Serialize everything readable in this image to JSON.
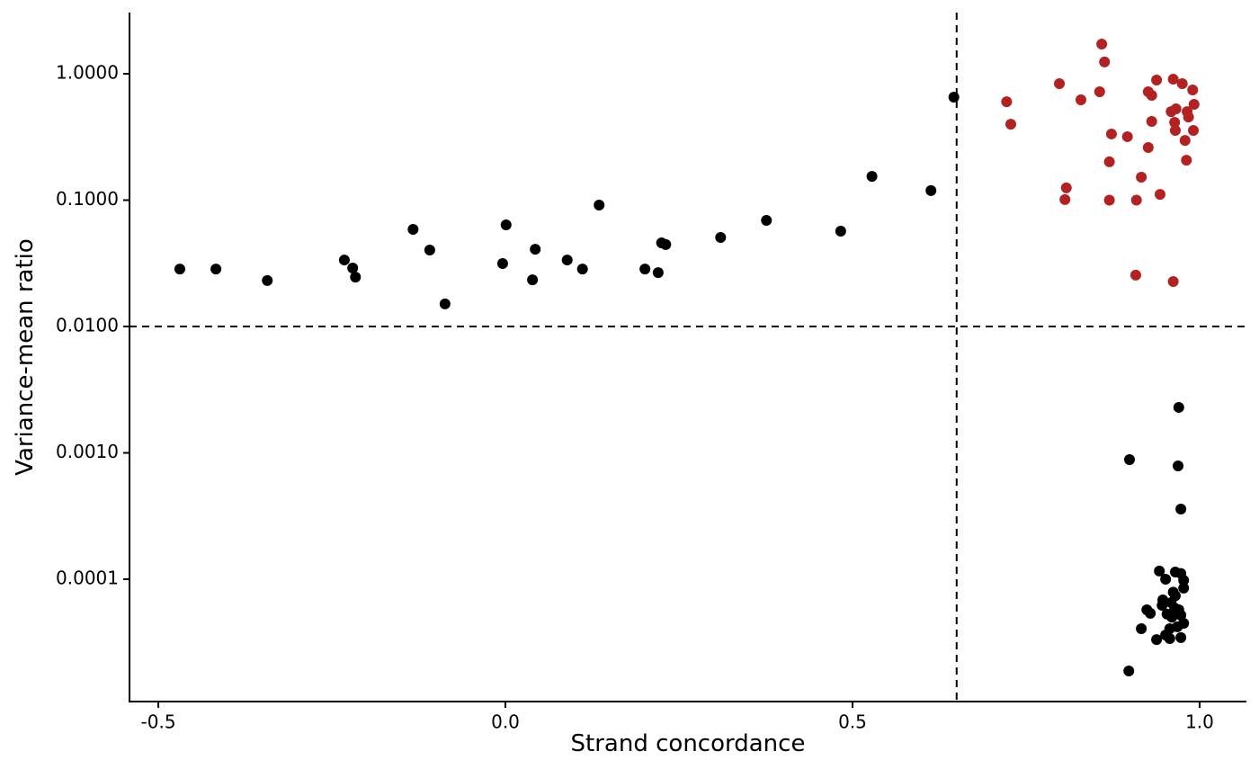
{
  "chart_data": {
    "type": "scatter",
    "xlabel": "Strand concordance",
    "ylabel": "Variance-mean ratio",
    "xlim": [
      -0.5415,
      1.0674
    ],
    "ylim": [
      1.076e-05,
      3.05
    ],
    "ylog": true,
    "xticks": [
      -0.5,
      {
        "value": 0,
        "label": "0.0"
      },
      0.5,
      {
        "value": 1,
        "label": "1.0"
      }
    ],
    "yticks": [
      {
        "value": 1,
        "label": "1.0000"
      },
      {
        "value": 0.1,
        "label": "0.1000"
      },
      {
        "value": 0.01,
        "label": "0.0100"
      },
      {
        "value": 0.001,
        "label": "0.0010"
      },
      {
        "value": 0.0001,
        "label": "0.0001"
      }
    ],
    "reference_lines": {
      "x": 0.65,
      "y": 0.01
    },
    "series": [
      {
        "color": "#000000",
        "x": [
          -0.469,
          -0.417,
          -0.343,
          -0.232,
          -0.22,
          -0.216,
          -0.133,
          -0.109,
          -0.087,
          -0.004,
          0.001,
          0.039,
          0.043,
          0.089,
          0.111,
          0.135,
          0.201,
          0.22,
          0.225,
          0.231,
          0.31,
          0.376,
          0.483,
          0.528,
          0.613,
          0.646,
          0.97,
          0.899,
          0.969,
          0.973,
          0.898,
          0.942,
          0.965,
          0.973,
          0.951,
          0.977,
          0.977,
          0.962,
          0.965,
          0.947,
          0.959,
          0.946,
          0.964,
          0.924,
          0.97,
          0.929,
          0.953,
          0.973,
          0.96,
          0.977,
          0.968,
          0.916,
          0.957,
          0.951,
          0.938,
          0.957,
          0.973
        ],
        "values": [
          0.0285,
          0.0285,
          0.0231,
          0.0336,
          0.029,
          0.0246,
          0.0587,
          0.0403,
          0.0151,
          0.0315,
          0.0637,
          0.0234,
          0.0409,
          0.0336,
          0.0285,
          0.0914,
          0.0285,
          0.0267,
          0.0459,
          0.0445,
          0.0507,
          0.0692,
          0.0568,
          0.154,
          0.119,
          0.653,
          0.00229,
          0.000885,
          0.000788,
          0.000359,
          1.88e-05,
          0.000116,
          0.000114,
          0.000111,
          0.0001,
          9.8e-05,
          8.5e-05,
          7.9e-05,
          7.4e-05,
          6.86e-05,
          6.53e-05,
          6.22e-05,
          5.92e-05,
          5.73e-05,
          5.73e-05,
          5.37e-05,
          5.3e-05,
          5.19e-05,
          5e-05,
          4.48e-05,
          4.2e-05,
          4.06e-05,
          4.06e-05,
          3.62e-05,
          3.33e-05,
          3.39e-05,
          3.45e-05
        ]
      },
      {
        "color": "#b22222",
        "x": [
          0.859,
          0.863,
          0.722,
          0.728,
          0.798,
          0.829,
          0.856,
          0.808,
          0.806,
          0.873,
          0.87,
          0.87,
          0.896,
          0.909,
          0.916,
          0.908,
          0.926,
          0.931,
          0.926,
          0.931,
          0.938,
          0.943,
          0.962,
          0.959,
          0.966,
          0.964,
          0.965,
          0.962,
          0.975,
          0.99,
          0.992,
          0.982,
          0.984,
          0.991,
          0.979,
          0.981
        ],
        "values": [
          1.72,
          1.24,
          0.601,
          0.399,
          0.835,
          0.622,
          0.721,
          0.125,
          0.101,
          0.334,
          0.201,
          0.1,
          0.318,
          0.1,
          0.152,
          0.0255,
          0.261,
          0.42,
          0.721,
          0.675,
          0.892,
          0.111,
          0.906,
          0.502,
          0.528,
          0.413,
          0.356,
          0.0227,
          0.835,
          0.745,
          0.573,
          0.502,
          0.455,
          0.356,
          0.297,
          0.207
        ]
      }
    ]
  }
}
